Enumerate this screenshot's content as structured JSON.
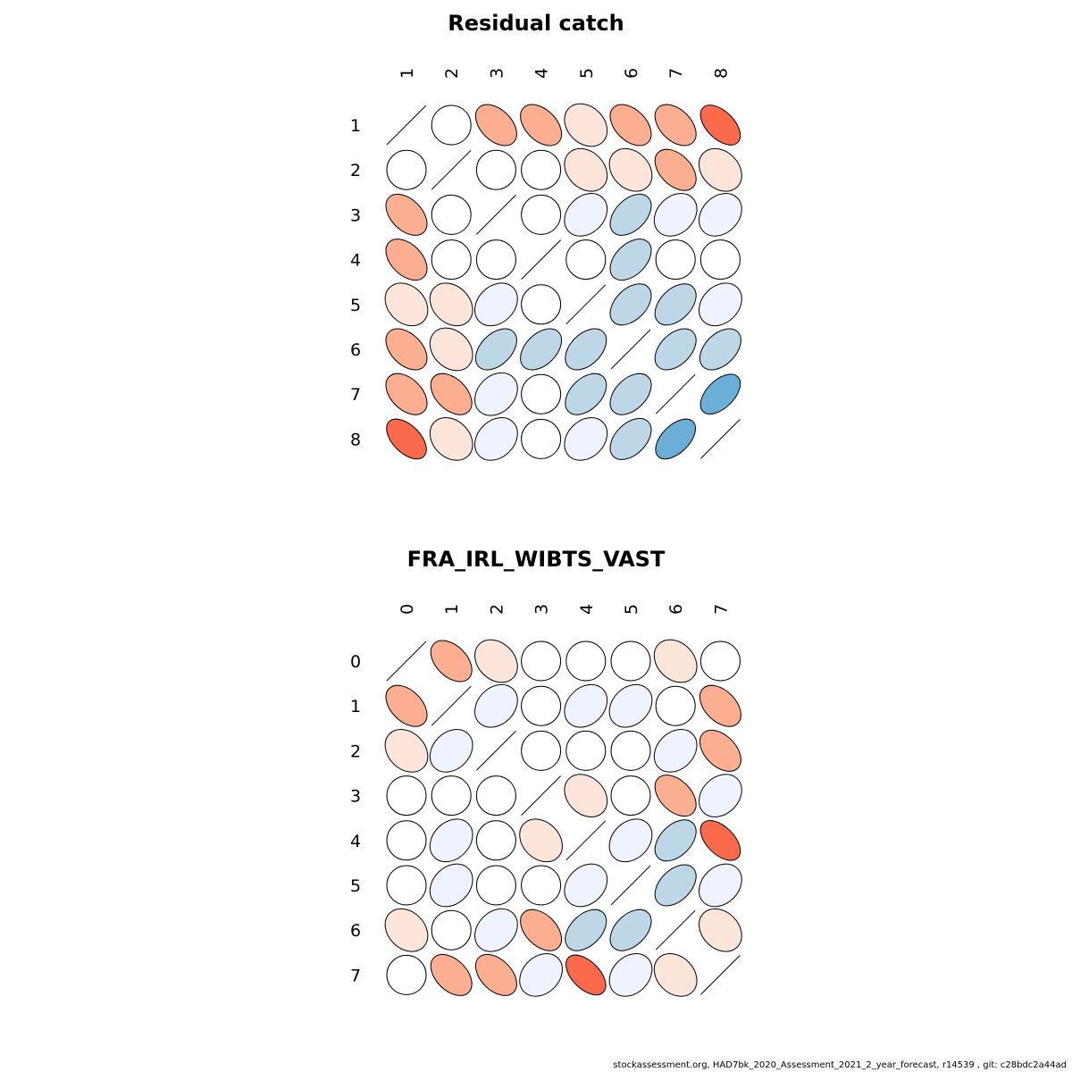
{
  "chart_data": [
    {
      "type": "heatmap",
      "subtype": "ellipse-correlation-matrix",
      "title": "Residual catch",
      "labels": [
        "1",
        "2",
        "3",
        "4",
        "5",
        "6",
        "7",
        "8"
      ],
      "correlations": [
        [
          1,
          0,
          -0.45,
          -0.45,
          -0.15,
          -0.45,
          -0.45,
          -0.6
        ],
        [
          0,
          1,
          0,
          0,
          -0.15,
          -0.15,
          -0.45,
          -0.15
        ],
        [
          -0.45,
          0,
          1,
          0,
          0.15,
          0.45,
          0.15,
          0.15
        ],
        [
          -0.45,
          0,
          0,
          1,
          0,
          0.45,
          0,
          0
        ],
        [
          -0.15,
          -0.15,
          0.15,
          0,
          1,
          0.45,
          0.45,
          0.15
        ],
        [
          -0.45,
          -0.15,
          0.45,
          0.45,
          0.45,
          1,
          0.45,
          0.45
        ],
        [
          -0.45,
          -0.45,
          0.15,
          0,
          0.45,
          0.45,
          1,
          0.6
        ],
        [
          -0.6,
          -0.15,
          0.15,
          0,
          0.15,
          0.45,
          0.6,
          1
        ]
      ]
    },
    {
      "type": "heatmap",
      "subtype": "ellipse-correlation-matrix",
      "title": "FRA_IRL_WIBTS_VAST",
      "labels": [
        "0",
        "1",
        "2",
        "3",
        "4",
        "5",
        "6",
        "7"
      ],
      "correlations": [
        [
          1,
          -0.45,
          -0.15,
          0,
          0,
          0,
          -0.15,
          0
        ],
        [
          -0.45,
          1,
          0.15,
          0,
          0.15,
          0.15,
          0,
          -0.45
        ],
        [
          -0.15,
          0.15,
          1,
          0,
          0,
          0,
          0.15,
          -0.45
        ],
        [
          0,
          0,
          0,
          1,
          -0.15,
          0,
          -0.45,
          0.15
        ],
        [
          0,
          0.15,
          0,
          -0.15,
          1,
          0.15,
          0.45,
          -0.6
        ],
        [
          0,
          0.15,
          0,
          0,
          0.15,
          1,
          0.45,
          0.15
        ],
        [
          -0.15,
          0,
          0.15,
          -0.45,
          0.45,
          0.45,
          1,
          -0.15
        ],
        [
          0,
          -0.45,
          -0.45,
          0.15,
          -0.6,
          0.15,
          -0.15,
          1
        ]
      ]
    }
  ],
  "color_scale": {
    "strong_negative": "#fb6a4a",
    "negative": "#fcae91",
    "weak_negative": "#fee5d9",
    "neutral": "#ffffff",
    "weak_positive": "#eff3ff",
    "positive": "#bdd7e7",
    "strong_positive": "#6baed6"
  },
  "footer": "stockassessment.org, HAD7bk_2020_Assessment_2021_2_year_forecast, r14539 , git: c28bdc2a44ad"
}
